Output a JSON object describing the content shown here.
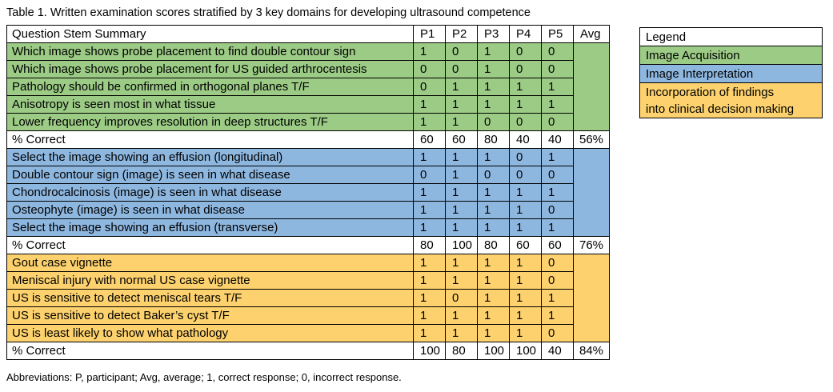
{
  "caption": "Table 1. Written examination scores stratified by 3 key domains for developing ultrasound competence",
  "colors": {
    "acquisition": "#9ccb86",
    "interpretation": "#8eb7e0",
    "clinical": "#fdd26e",
    "white": "#ffffff"
  },
  "headers": [
    "Question Stem Summary",
    "P1",
    "P2",
    "P3",
    "P4",
    "P5",
    "Avg"
  ],
  "sections": [
    {
      "domain": "acquisition",
      "rows": [
        {
          "q": "Which image shows probe placement to find double contour sign",
          "v": [
            "1",
            "0",
            "1",
            "0",
            "0"
          ]
        },
        {
          "q": "Which image shows probe placement for US guided arthrocentesis",
          "v": [
            "0",
            "0",
            "1",
            "0",
            "0"
          ]
        },
        {
          "q": "Pathology should be confirmed in orthogonal planes T/F",
          "v": [
            "0",
            "1",
            "1",
            "1",
            "1"
          ]
        },
        {
          "q": "Anisotropy is seen most in what tissue",
          "v": [
            "1",
            "1",
            "1",
            "1",
            "1"
          ]
        },
        {
          "q": "Lower frequency improves resolution in deep structures T/F",
          "v": [
            "1",
            "1",
            "0",
            "0",
            "0"
          ]
        }
      ],
      "total": {
        "label": "% Correct",
        "v": [
          "60",
          "60",
          "80",
          "40",
          "40"
        ],
        "avg": "56%"
      }
    },
    {
      "domain": "interpretation",
      "rows": [
        {
          "q": "Select the image showing an effusion (longitudinal)",
          "v": [
            "1",
            "1",
            "1",
            "0",
            "1"
          ]
        },
        {
          "q": "Double contour sign (image) is seen in what disease",
          "v": [
            "0",
            "1",
            "0",
            "0",
            "0"
          ]
        },
        {
          "q": "Chondrocalcinosis (image) is seen in what disease",
          "v": [
            "1",
            "1",
            "1",
            "1",
            "1"
          ]
        },
        {
          "q": "Osteophyte (image) is seen in what disease",
          "v": [
            "1",
            "1",
            "1",
            "1",
            "0"
          ]
        },
        {
          "q": "Select the image showing an effusion (transverse)",
          "v": [
            "1",
            "1",
            "1",
            "1",
            "1"
          ]
        }
      ],
      "total": {
        "label": "% Correct",
        "v": [
          "80",
          "100",
          "80",
          "60",
          "60"
        ],
        "avg": "76%"
      }
    },
    {
      "domain": "clinical",
      "rows": [
        {
          "q": "Gout case vignette",
          "v": [
            "1",
            "1",
            "1",
            "1",
            "0"
          ]
        },
        {
          "q": "Meniscal injury with normal US case vignette",
          "v": [
            "1",
            "1",
            "1",
            "1",
            "0"
          ]
        },
        {
          "q": "US is sensitive to detect meniscal tears T/F",
          "v": [
            "1",
            "0",
            "1",
            "1",
            "1"
          ]
        },
        {
          "q": "US is sensitive to detect Baker’s cyst T/F",
          "v": [
            "1",
            "1",
            "1",
            "1",
            "1"
          ]
        },
        {
          "q": "US is least likely to show what pathology",
          "v": [
            "1",
            "1",
            "1",
            "1",
            "0"
          ]
        }
      ],
      "total": {
        "label": "% Correct",
        "v": [
          "100",
          "80",
          "100",
          "100",
          "40"
        ],
        "avg": "84%"
      }
    }
  ],
  "footnote": "Abbreviations: P, participant; Avg, average; 1, correct response; 0, incorrect response.",
  "legend": {
    "title": "Legend",
    "items": [
      {
        "label": "Image Acquisition",
        "domain": "acquisition"
      },
      {
        "label": "Image Interpretation",
        "domain": "interpretation"
      },
      {
        "label_line1": "Incorporation of findings",
        "label_line2": "into clinical decision making",
        "domain": "clinical"
      }
    ]
  }
}
